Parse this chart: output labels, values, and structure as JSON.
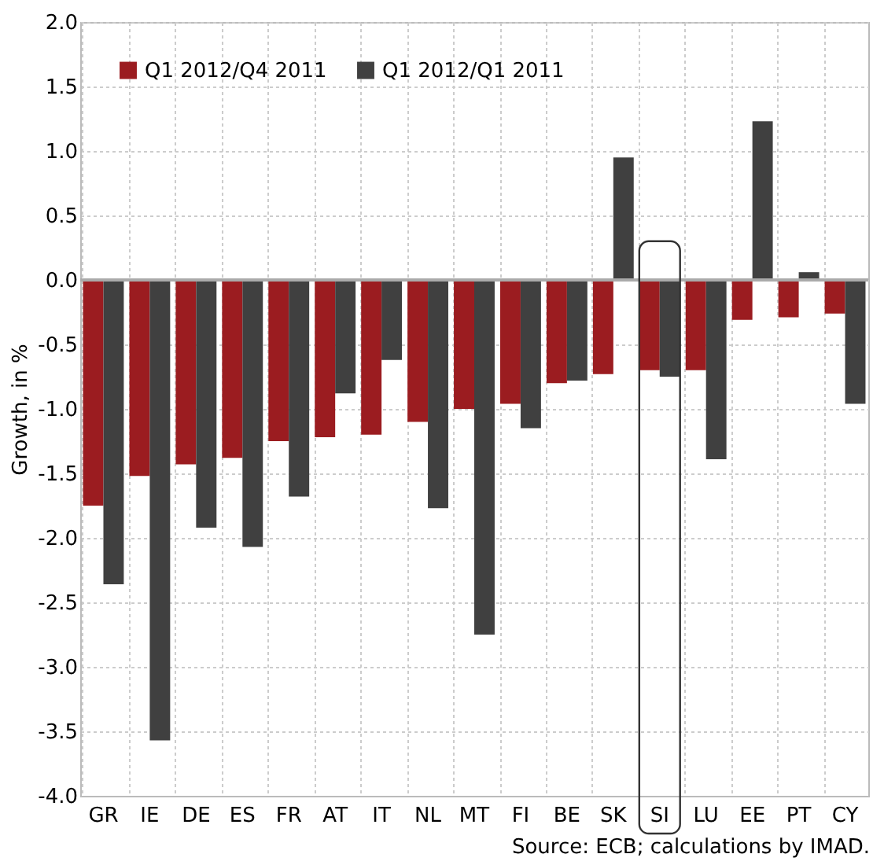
{
  "chart_data": {
    "type": "bar",
    "ylabel": "Growth, in %",
    "categories": [
      "GR",
      "IE",
      "DE",
      "ES",
      "FR",
      "AT",
      "IT",
      "NL",
      "MT",
      "FI",
      "BE",
      "SK",
      "SI",
      "LU",
      "EE",
      "PT",
      "CY"
    ],
    "series": [
      {
        "name": "Q1 2012/Q4 2011",
        "color": "#9b1c20",
        "values": [
          -1.75,
          -1.52,
          -1.43,
          -1.38,
          -1.25,
          -1.22,
          -1.2,
          -1.1,
          -1.0,
          -0.96,
          -0.8,
          -0.73,
          -0.7,
          -0.7,
          -0.31,
          -0.29,
          -0.26
        ]
      },
      {
        "name": "Q1 2012/Q1 2011",
        "color": "#404040",
        "values": [
          -2.36,
          -3.57,
          -1.92,
          -2.07,
          -1.68,
          -0.88,
          -0.62,
          -1.77,
          -2.75,
          -1.15,
          -0.78,
          0.95,
          -0.75,
          -1.39,
          1.23,
          0.06,
          -0.96
        ]
      }
    ],
    "ylim": [
      -4.0,
      2.0
    ],
    "yticks": [
      {
        "value": -4,
        "label": "-4.0"
      },
      {
        "value": -3.5,
        "label": "-3.5"
      },
      {
        "value": -3,
        "label": "-3.0"
      },
      {
        "value": -2.5,
        "label": "-2.5"
      },
      {
        "value": -2,
        "label": "-2.0"
      },
      {
        "value": -1.5,
        "label": "-1.5"
      },
      {
        "value": -1,
        "label": "-1.0"
      },
      {
        "value": -0.5,
        "label": "-0.5"
      },
      {
        "value": 0,
        "label": "0.0"
      },
      {
        "value": 0.5,
        "label": "0.5"
      },
      {
        "value": 1,
        "label": "1.0"
      },
      {
        "value": 1.5,
        "label": "1.5"
      },
      {
        "value": 2,
        "label": "2.0"
      }
    ],
    "grid": true,
    "legend": "top left",
    "annotations": [
      "Source: ECB; calculations by IMAD."
    ]
  }
}
